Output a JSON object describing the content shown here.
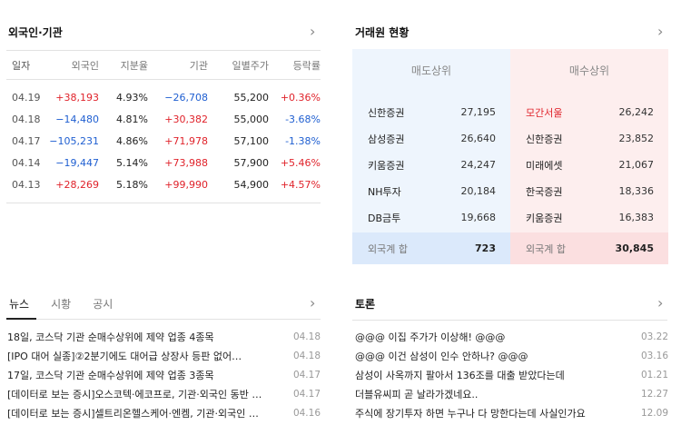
{
  "foreign": {
    "title": "외국인·기관",
    "headers": [
      "일자",
      "외국인",
      "지분율",
      "기관",
      "일별주가",
      "등락률"
    ],
    "rows": [
      {
        "date": "04.19",
        "foreign": "+38,193",
        "foreign_dir": "up",
        "share": "4.93%",
        "inst": "−26,708",
        "inst_dir": "down",
        "price": "55,200",
        "rate": "+0.36%",
        "rate_dir": "up"
      },
      {
        "date": "04.18",
        "foreign": "−14,480",
        "foreign_dir": "down",
        "share": "4.81%",
        "inst": "+30,382",
        "inst_dir": "up",
        "price": "55,000",
        "rate": "-3.68%",
        "rate_dir": "down"
      },
      {
        "date": "04.17",
        "foreign": "−105,231",
        "foreign_dir": "down",
        "share": "4.86%",
        "inst": "+71,978",
        "inst_dir": "up",
        "price": "57,100",
        "rate": "-1.38%",
        "rate_dir": "down"
      },
      {
        "date": "04.14",
        "foreign": "−19,447",
        "foreign_dir": "down",
        "share": "5.14%",
        "inst": "+73,988",
        "inst_dir": "up",
        "price": "57,900",
        "rate": "+5.46%",
        "rate_dir": "up"
      },
      {
        "date": "04.13",
        "foreign": "+28,269",
        "foreign_dir": "up",
        "share": "5.18%",
        "inst": "+99,990",
        "inst_dir": "up",
        "price": "54,900",
        "rate": "+4.57%",
        "rate_dir": "up"
      }
    ]
  },
  "broker": {
    "title": "거래원 현황",
    "sell": {
      "header": "매도상위",
      "rows": [
        {
          "name": "신한증권",
          "value": "27,195"
        },
        {
          "name": "삼성증권",
          "value": "26,640"
        },
        {
          "name": "키움증권",
          "value": "24,247"
        },
        {
          "name": "NH투자",
          "value": "20,184"
        },
        {
          "name": "DB금투",
          "value": "19,668"
        }
      ],
      "total_label": "외국계 합",
      "total": "723"
    },
    "buy": {
      "header": "매수상위",
      "rows": [
        {
          "name": "모간서울",
          "value": "26,242",
          "highlight": true
        },
        {
          "name": "신한증권",
          "value": "23,852"
        },
        {
          "name": "미래에셋",
          "value": "21,067"
        },
        {
          "name": "한국증권",
          "value": "18,336"
        },
        {
          "name": "키움증권",
          "value": "16,383"
        }
      ],
      "total_label": "외국계 합",
      "total": "30,845"
    }
  },
  "news": {
    "tabs": [
      "뉴스",
      "시황",
      "공시"
    ],
    "active_tab": 0,
    "items": [
      {
        "title": "18일, 코스닥 기관 순매수상위에 제약 업종 4종목",
        "date": "04.18"
      },
      {
        "title": "[IPO 대어 실종]②2분기에도 대어급 상장사 등판 없어…",
        "date": "04.18"
      },
      {
        "title": "17일, 코스닥 기관 순매수상위에 제약 업종 3종목",
        "date": "04.17"
      },
      {
        "title": "[데이터로 보는 증시]오스코텍·에코프로, 기관·외국인 동반 순매수",
        "date": "04.17"
      },
      {
        "title": "[데이터로 보는 증시]셀트리온헬스케어·엔켐, 기관·외국인 동반 순매수",
        "date": "04.16"
      }
    ]
  },
  "board": {
    "title": "토론",
    "items": [
      {
        "title": "@@@ 이집 주가가 이상해! @@@",
        "date": "03.22"
      },
      {
        "title": "@@@ 이건 삼성이 인수 안하나? @@@",
        "date": "03.16"
      },
      {
        "title": "삼성이 사옥까지 팔아서 136조를 대출 받았다는데",
        "date": "01.21"
      },
      {
        "title": "더블유씨피 곧 날라가겠네요..",
        "date": "12.27"
      },
      {
        "title": "주식에 장기투자 하면 누구나 다 망한다는데 사실인가요",
        "date": "12.09"
      }
    ]
  },
  "colors": {
    "up": "#e0232b",
    "down": "#1f5fd1",
    "sell_bg": "#eef5fd",
    "buy_bg": "#fdeeee"
  },
  "icons": {
    "section_more": "chevron-right-icon"
  }
}
